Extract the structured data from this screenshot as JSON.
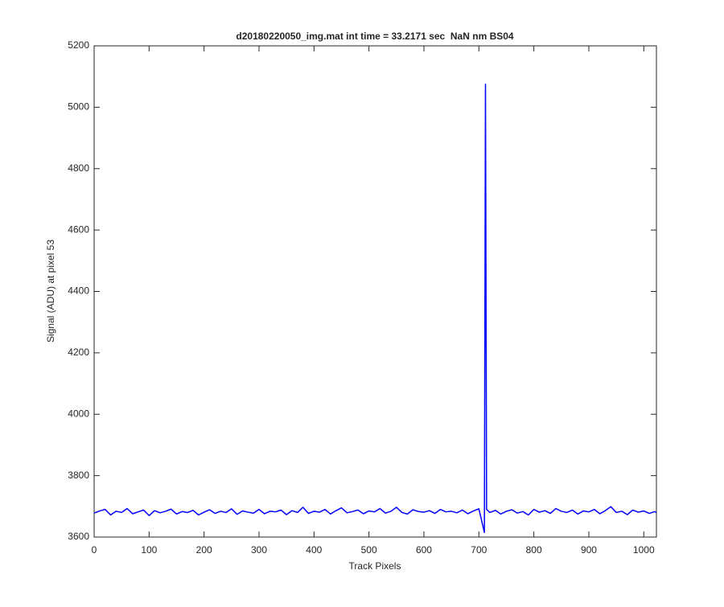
{
  "chart_data": {
    "type": "line",
    "title": "d20180220050_img.mat int time = 33.2171 sec  NaN nm BS04",
    "xlabel": "Track Pixels",
    "ylabel": "Signal (ADU) at pixel 53",
    "x": [
      0,
      10,
      20,
      30,
      40,
      50,
      60,
      70,
      80,
      90,
      100,
      110,
      120,
      130,
      140,
      150,
      160,
      170,
      180,
      190,
      200,
      210,
      220,
      230,
      240,
      250,
      260,
      270,
      280,
      290,
      300,
      310,
      320,
      330,
      340,
      350,
      360,
      370,
      380,
      390,
      400,
      410,
      420,
      430,
      440,
      450,
      460,
      470,
      480,
      490,
      500,
      510,
      520,
      530,
      540,
      550,
      560,
      570,
      580,
      590,
      600,
      610,
      620,
      630,
      640,
      650,
      660,
      670,
      680,
      690,
      700,
      710,
      712,
      714,
      720,
      730,
      740,
      750,
      760,
      770,
      780,
      790,
      800,
      810,
      820,
      830,
      840,
      850,
      860,
      870,
      880,
      890,
      900,
      910,
      920,
      930,
      940,
      950,
      960,
      970,
      980,
      990,
      1000,
      1010,
      1020,
      1023
    ],
    "series": [
      {
        "color": "#0000ff",
        "values": [
          3678,
          3685,
          3690,
          3672,
          3684,
          3680,
          3693,
          3676,
          3682,
          3688,
          3670,
          3686,
          3679,
          3684,
          3691,
          3675,
          3683,
          3680,
          3687,
          3672,
          3681,
          3689,
          3677,
          3684,
          3680,
          3692,
          3674,
          3685,
          3681,
          3678,
          3690,
          3676,
          3684,
          3682,
          3688,
          3673,
          3686,
          3680,
          3697,
          3677,
          3684,
          3681,
          3690,
          3675,
          3686,
          3695,
          3679,
          3683,
          3688,
          3676,
          3685,
          3682,
          3693,
          3678,
          3684,
          3697,
          3680,
          3675,
          3689,
          3683,
          3681,
          3686,
          3677,
          3690,
          3682,
          3684,
          3679,
          3688,
          3676,
          3685,
          3692,
          3615,
          5075,
          3690,
          3680,
          3687,
          3675,
          3684,
          3689,
          3678,
          3683,
          3672,
          3690,
          3681,
          3686,
          3677,
          3693,
          3684,
          3680,
          3688,
          3675,
          3685,
          3682,
          3690,
          3676,
          3686,
          3699,
          3680,
          3684,
          3673,
          3688,
          3681,
          3685,
          3677,
          3683,
          3679
        ]
      }
    ],
    "xlim": [
      0,
      1023
    ],
    "ylim": [
      3600,
      5200
    ],
    "xticks": [
      0,
      100,
      200,
      300,
      400,
      500,
      600,
      700,
      800,
      900,
      1000
    ],
    "yticks": [
      3600,
      3800,
      4000,
      4200,
      4400,
      4600,
      4800,
      5000,
      5200
    ]
  }
}
